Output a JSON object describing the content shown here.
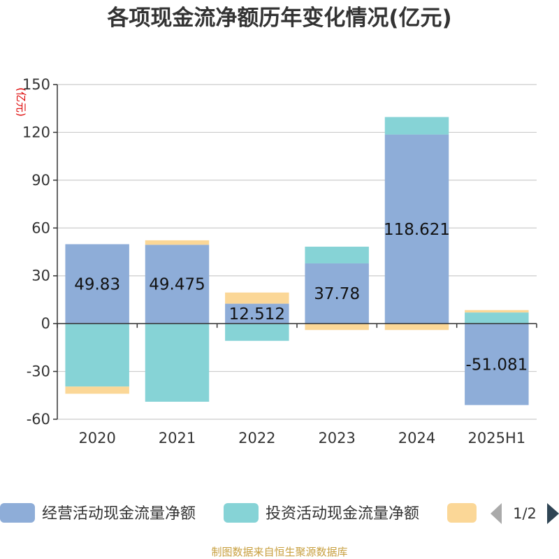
{
  "title": "各项现金流净额历年变化情况(亿元)",
  "source": "制图数据来自恒生聚源数据库",
  "legend": {
    "page_indicator": "1/2"
  },
  "colors": {
    "operating": "#8eadd8",
    "investing": "#86d3d6",
    "financing": "#fbd797"
  },
  "chart_data": {
    "type": "bar",
    "stacked": true,
    "title": "各项现金流净额历年变化情况(亿元)",
    "ylabel": "(亿元)",
    "ylim": [
      -60,
      150
    ],
    "yticks": [
      150,
      120,
      90,
      60,
      30,
      0,
      -30,
      -60
    ],
    "grid": true,
    "legend_position": "bottom",
    "categories": [
      "2020",
      "2021",
      "2022",
      "2023",
      "2024",
      "2025H1"
    ],
    "series": [
      {
        "name": "经营活动现金流量净额",
        "values": [
          49.83,
          49.475,
          12.512,
          37.78,
          118.621,
          -51.081
        ],
        "labels": [
          "49.83",
          "49.475",
          "12.512",
          "37.78",
          "118.621",
          "-51.081"
        ]
      },
      {
        "name": "投资活动现金流量净额",
        "values": [
          -39.5,
          -49.0,
          -10.8,
          10.5,
          11.0,
          7.0
        ]
      },
      {
        "name": "",
        "values": [
          -4.5,
          2.8,
          7.0,
          -4.0,
          -4.0,
          1.5
        ]
      }
    ]
  }
}
